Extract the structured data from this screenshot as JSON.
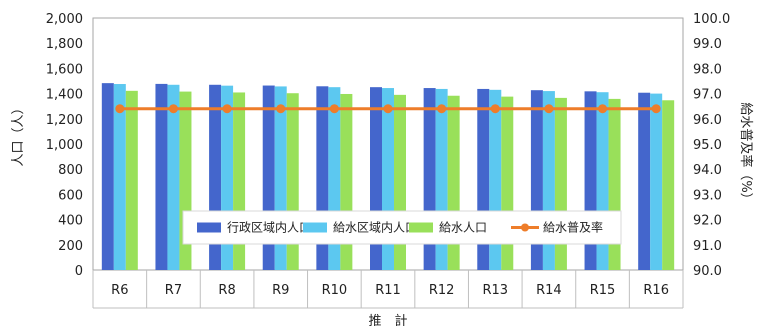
{
  "chart_data": {
    "type": "bar",
    "categories": [
      "R6",
      "R7",
      "R8",
      "R9",
      "R10",
      "R11",
      "R12",
      "R13",
      "R14",
      "R15",
      "R16"
    ],
    "series": [
      {
        "name": "行政区域内人口",
        "kind": "bar",
        "axis": "left",
        "color": "#4466cc",
        "values": [
          1483,
          1477,
          1470,
          1464,
          1458,
          1451,
          1444,
          1437,
          1427,
          1418,
          1407
        ]
      },
      {
        "name": "給水区域内人口",
        "kind": "bar",
        "axis": "left",
        "color": "#5cc8f0",
        "values": [
          1476,
          1470,
          1463,
          1457,
          1451,
          1444,
          1437,
          1430,
          1420,
          1411,
          1400
        ]
      },
      {
        "name": "給水人口",
        "kind": "bar",
        "axis": "left",
        "color": "#99e05a",
        "values": [
          1422,
          1416,
          1409,
          1403,
          1397,
          1390,
          1383,
          1376,
          1366,
          1358,
          1347
        ]
      },
      {
        "name": "給水普及率",
        "kind": "line",
        "axis": "right",
        "color": "#ee7d2a",
        "values": [
          96.4,
          96.4,
          96.4,
          96.4,
          96.4,
          96.4,
          96.4,
          96.4,
          96.4,
          96.4,
          96.4
        ]
      }
    ],
    "y_left": {
      "label": "人口（人）",
      "min": 0,
      "max": 2000,
      "step": 200,
      "ticks": [
        "0",
        "200",
        "400",
        "600",
        "800",
        "1,000",
        "1,200",
        "1,400",
        "1,600",
        "1,800",
        "2,000"
      ]
    },
    "y_right": {
      "label": "給水普及率（%）",
      "min": 90,
      "max": 100,
      "step": 1,
      "ticks": [
        "90.0",
        "91.0",
        "92.0",
        "93.0",
        "94.0",
        "95.0",
        "96.0",
        "97.0",
        "98.0",
        "99.0",
        "100.0"
      ]
    },
    "xlabel": "推　計",
    "grid": false,
    "legend": "inside-bottom"
  }
}
